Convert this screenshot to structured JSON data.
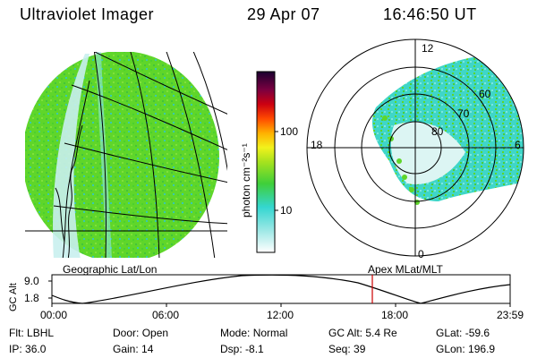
{
  "header": {
    "title": "Ultraviolet Imager",
    "date": "29 Apr 07",
    "time": "16:46:50 UT"
  },
  "colorbar": {
    "label": "photon cm⁻²s⁻¹",
    "ticks": [
      "100",
      "10"
    ]
  },
  "polar": {
    "ring_labels": [
      "80",
      "70",
      "60"
    ],
    "clock_labels": [
      "12",
      "18",
      "6",
      "0"
    ]
  },
  "captions": {
    "left": "Geographic Lat/Lon",
    "right": "Apex MLat/MLT"
  },
  "altitude_plot": {
    "ylabel": "GC Alt",
    "yticks": [
      "9.0",
      "1.8"
    ],
    "xticks": [
      "00:00",
      "06:00",
      "12:00",
      "18:00",
      "23:59"
    ],
    "current_marker_time": "16:46:50"
  },
  "footer": {
    "row1": [
      {
        "label": "Flt:",
        "value": "LBHL"
      },
      {
        "label": "Door:",
        "value": "Open"
      },
      {
        "label": "Mode:",
        "value": "Normal"
      },
      {
        "label": "GC Alt:",
        "value": "5.4 Re"
      },
      {
        "label": "GLat:",
        "value": "-59.6"
      }
    ],
    "row2": [
      {
        "label": "IP:",
        "value": "36.0"
      },
      {
        "label": "Gain:",
        "value": "14"
      },
      {
        "label": "Dsp:",
        "value": "-8.1"
      },
      {
        "label": "Seq:",
        "value": "39"
      },
      {
        "label": "GLon:",
        "value": "196.9"
      }
    ]
  },
  "colors": {
    "aurora_green": "#5fd62a",
    "aurora_cyan": "#35d6d0",
    "marker_red": "#cc0000"
  }
}
